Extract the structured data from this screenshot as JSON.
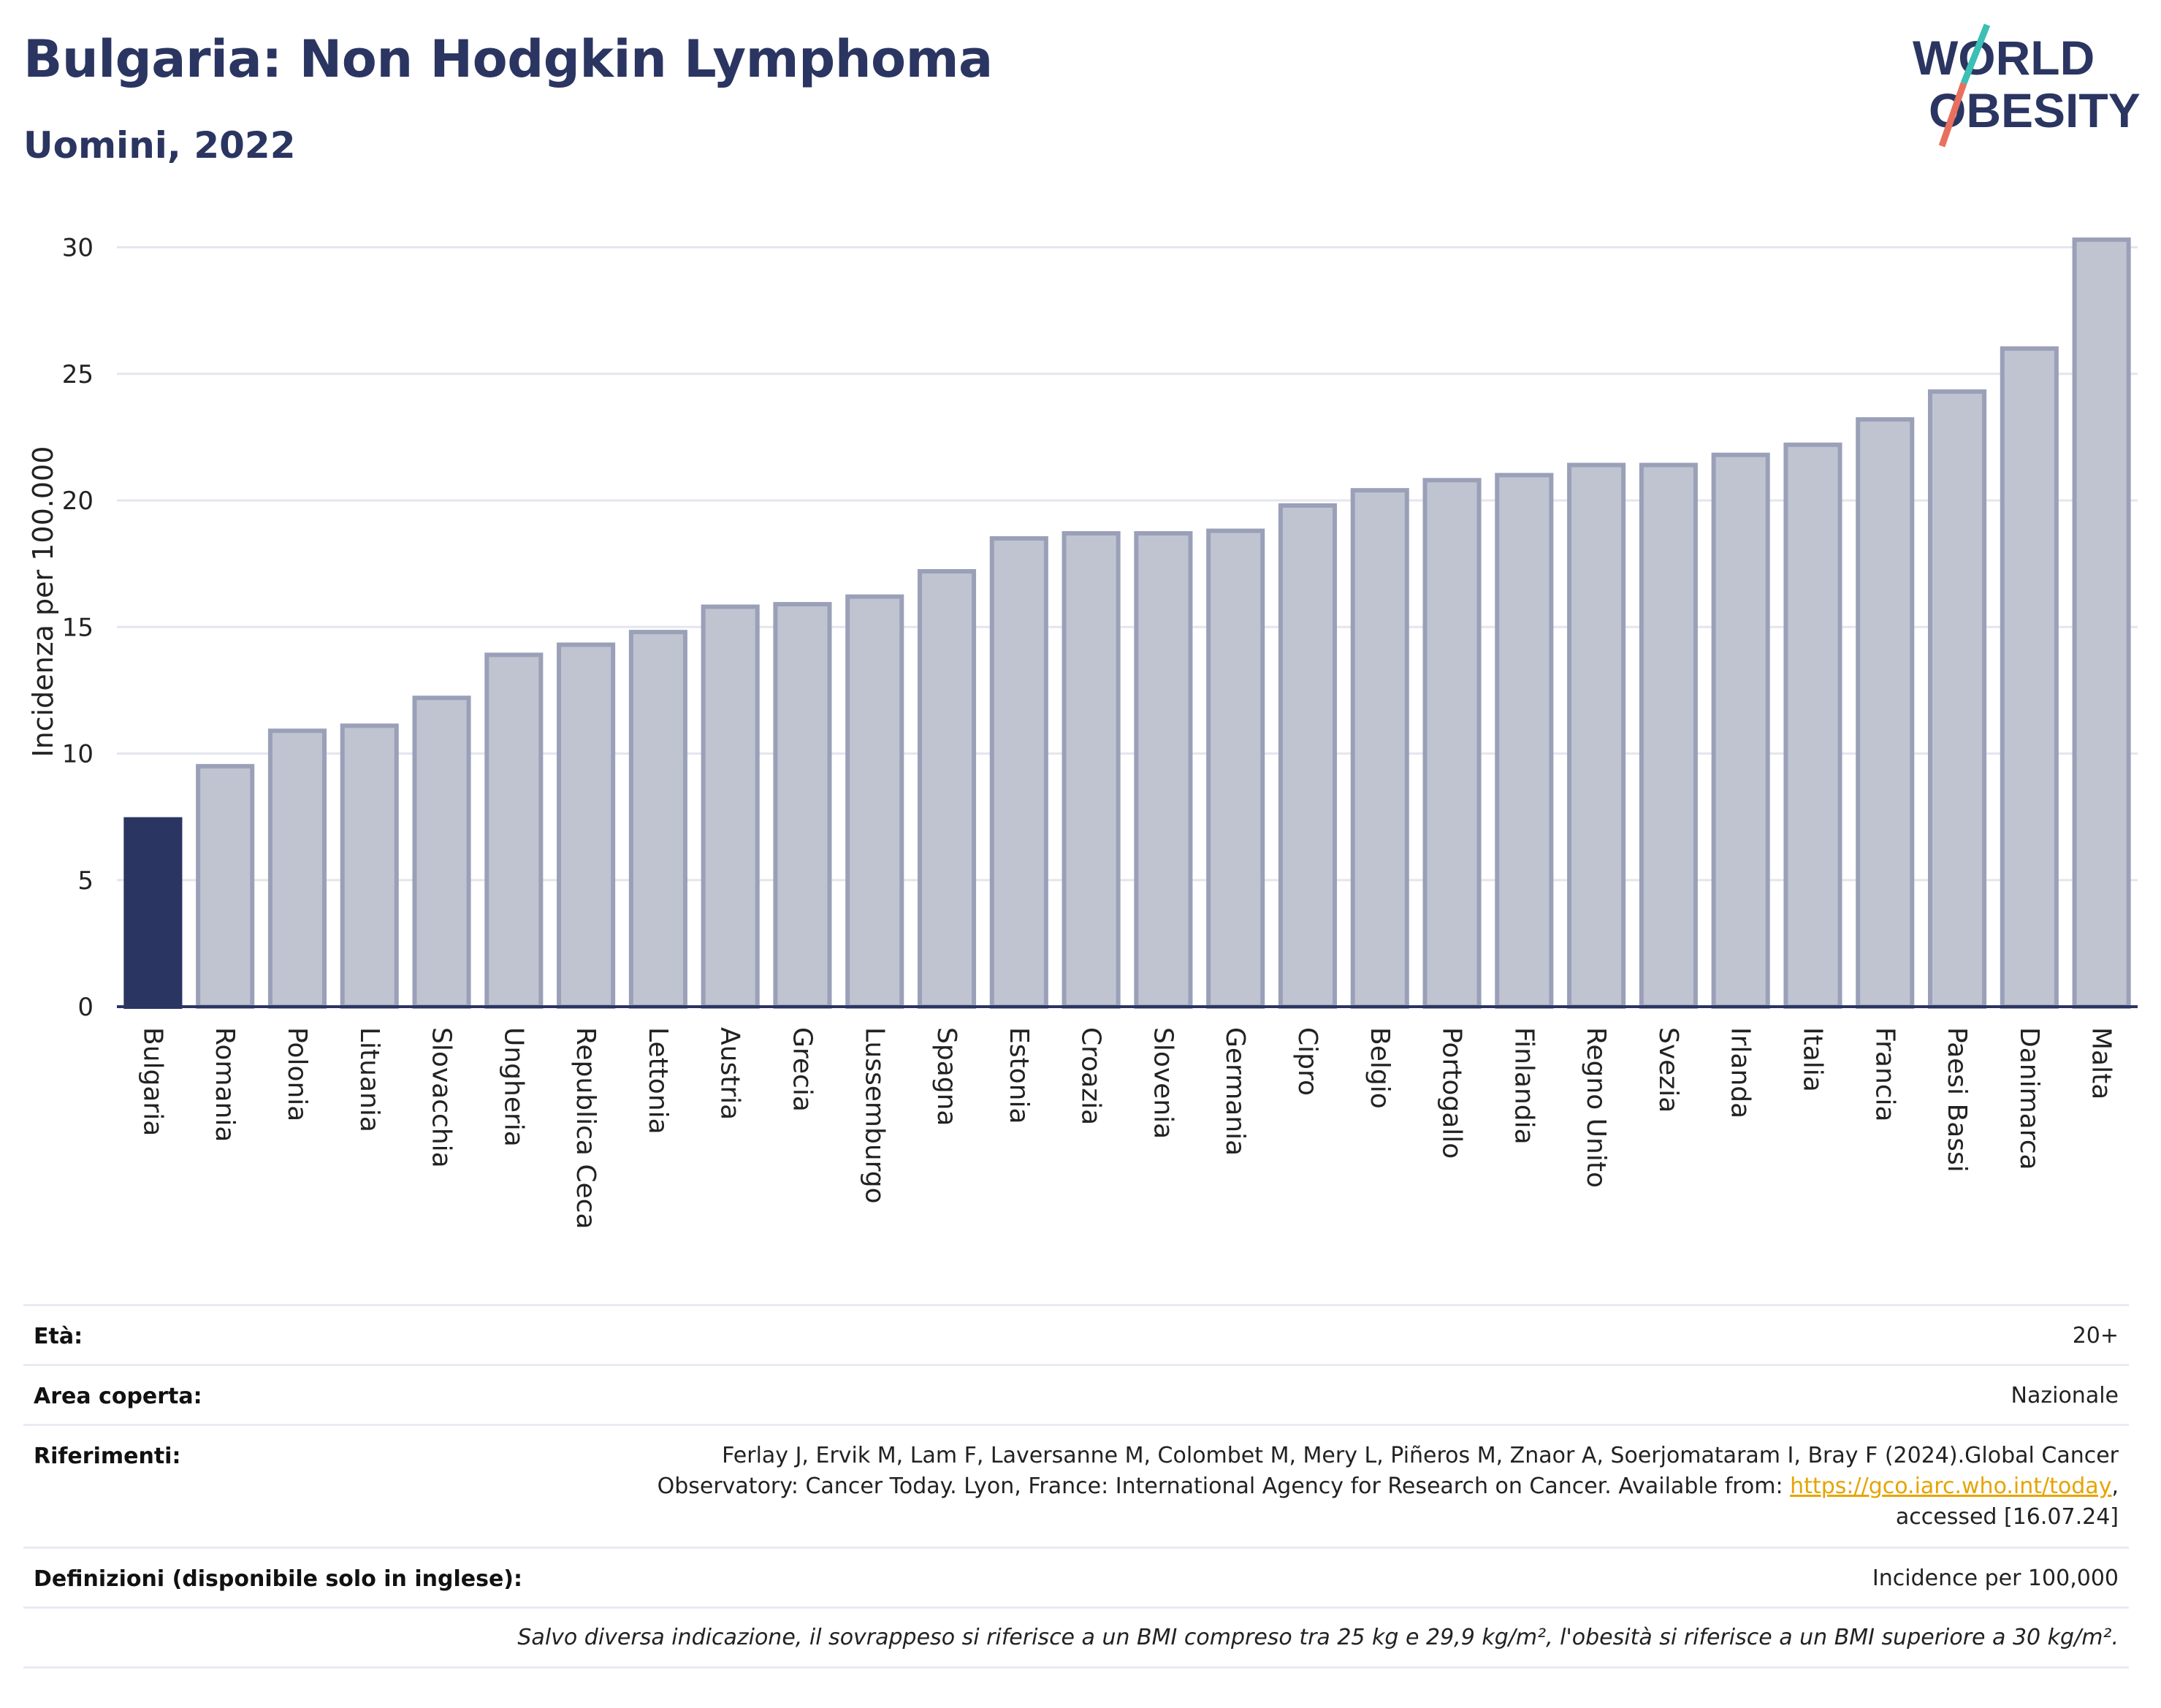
{
  "header": {
    "title": "Bulgaria: Non Hodgkin Lymphoma",
    "subtitle": "Uomini, 2022"
  },
  "logo": {
    "line1": "WORLD",
    "line2": "OBESITY",
    "name": "world-obesity-logo"
  },
  "colors": {
    "highlight_bar": "#2b3561",
    "bar_fill": "#c0c4d1",
    "bar_stroke": "#9aa0b8",
    "title": "#2b3561",
    "link": "#e6a400",
    "grid": "#e4e6ee"
  },
  "chart_data": {
    "type": "bar",
    "ylabel": "Incidenza per 100.000",
    "xlabel": "",
    "ylim": [
      0,
      31
    ],
    "yticks": [
      0,
      5,
      10,
      15,
      20,
      25,
      30
    ],
    "grid": true,
    "highlight": "Bulgaria",
    "categories": [
      "Bulgaria",
      "Romania",
      "Polonia",
      "Lituania",
      "Slovacchia",
      "Ungheria",
      "Republica Ceca",
      "Lettonia",
      "Austria",
      "Grecia",
      "Lussemburgo",
      "Spagna",
      "Estonia",
      "Croazia",
      "Slovenia",
      "Germania",
      "Cipro",
      "Belgio",
      "Portogallo",
      "Finlandia",
      "Regno Unito",
      "Svezia",
      "Irlanda",
      "Italia",
      "Francia",
      "Paesi Bassi",
      "Danimarca",
      "Malta"
    ],
    "values": [
      7.4,
      9.5,
      10.9,
      11.1,
      12.2,
      13.9,
      14.3,
      14.8,
      15.8,
      15.9,
      16.2,
      17.2,
      18.5,
      18.7,
      18.7,
      18.8,
      19.8,
      20.4,
      20.8,
      21.0,
      21.4,
      21.4,
      21.8,
      22.2,
      23.2,
      24.3,
      26.0,
      30.3
    ]
  },
  "meta": {
    "age_label": "Età:",
    "age_value": "20+",
    "area_label": "Area coperta:",
    "area_value": "Nazionale",
    "ref_label": "Riferimenti:",
    "ref_line1": "Ferlay J, Ervik M, Lam F, Laversanne M, Colombet M, Mery L, Piñeros M, Znaor A, Soerjomataram I, Bray F (2024).Global Cancer",
    "ref_line2_pre": "Observatory: Cancer Today. Lyon, France: International Agency for Research on Cancer. Available from: ",
    "ref_link": "https://gco.iarc.who.int/today",
    "ref_line2_post": ",",
    "ref_line3": "accessed [16.07.24]",
    "def_label": "Definizioni (disponibile solo in inglese):",
    "def_value": "Incidence per 100,000",
    "note": "Salvo diversa indicazione, il sovrappeso si riferisce a un BMI compreso tra 25 kg e 29,9 kg/m², l'obesità si riferisce a un BMI superiore a 30 kg/m²."
  }
}
